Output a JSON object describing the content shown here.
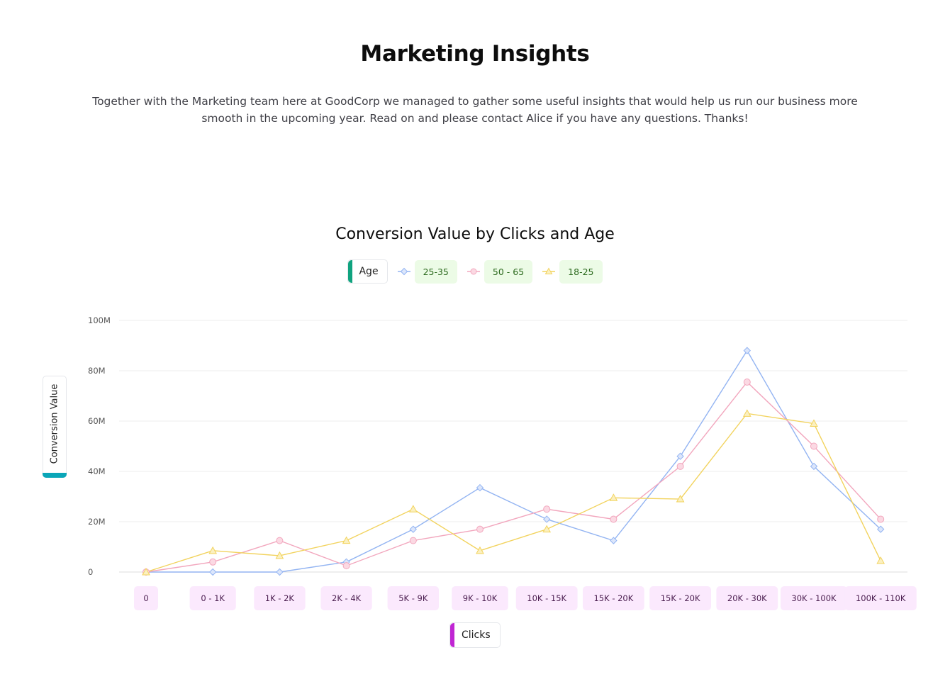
{
  "header": {
    "title": "Marketing Insights",
    "intro_line1": "Together with the Marketing team here at GoodCorp we managed to gather some useful insights that would help us run our business more",
    "intro_line2": "smooth in the upcoming year. Read on and please contact Alice if you have any questions. Thanks!"
  },
  "chart_data": {
    "type": "line",
    "title": "Conversion Value by Clicks and Age",
    "xlabel": "Clicks",
    "ylabel": "Conversion Value",
    "legend_title": "Age",
    "legend_position": "top-center",
    "grid": true,
    "ylim": [
      0,
      100000000
    ],
    "yticks": [
      {
        "value": 0,
        "label": "0"
      },
      {
        "value": 20000000,
        "label": "20M"
      },
      {
        "value": 40000000,
        "label": "40M"
      },
      {
        "value": 60000000,
        "label": "60M"
      },
      {
        "value": 80000000,
        "label": "80M"
      },
      {
        "value": 100000000,
        "label": "100M"
      }
    ],
    "categories": [
      "0",
      "0 - 1K",
      "1K - 2K",
      "2K - 4K",
      "5K - 9K",
      "9K - 10K",
      "10K - 15K",
      "15K - 20K",
      "15K - 20K",
      "20K - 30K",
      "30K - 100K",
      "100K - 110K"
    ],
    "series": [
      {
        "name": "25-35",
        "color": "#93b4f2",
        "marker": "diamond",
        "values": [
          0,
          0,
          0,
          4000000,
          17000000,
          33500000,
          21000000,
          12500000,
          46000000,
          88000000,
          42000000,
          17000000
        ]
      },
      {
        "name": "50 - 65",
        "color": "#f2a6bd",
        "marker": "circle",
        "values": [
          0,
          4000000,
          12500000,
          2500000,
          12500000,
          17000000,
          25000000,
          21000000,
          42000000,
          75500000,
          50000000,
          21000000
        ]
      },
      {
        "name": "18-25",
        "color": "#f2d35e",
        "marker": "triangle",
        "values": [
          0,
          8500000,
          6500000,
          12500000,
          25000000,
          8500000,
          17000000,
          29500000,
          29000000,
          63000000,
          59000000,
          4500000
        ]
      }
    ]
  }
}
